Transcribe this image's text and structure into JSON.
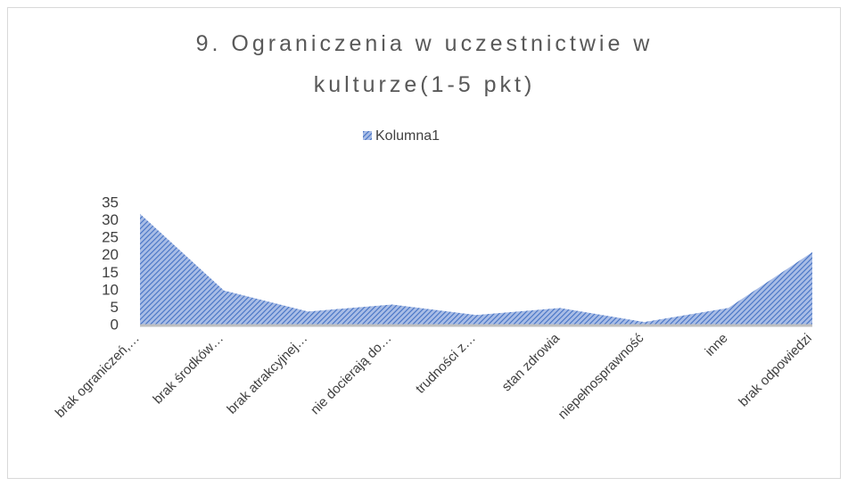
{
  "chart_data": {
    "type": "area",
    "title": [
      "9. Ograniczenia w uczestnictwie w",
      "kulturze(1-5 pkt)"
    ],
    "categories": [
      "brak ograniczeń,…",
      "brak środków…",
      "brak atrakcyjnej…",
      "nie docierają do…",
      "trudności z…",
      "stan zdrowia",
      "niepełnosprawność",
      "inne",
      "brak odpowiedzi"
    ],
    "series": [
      {
        "name": "Kolumna1",
        "color": "#4472c4",
        "values": [
          32,
          10,
          4,
          6,
          3,
          5,
          1,
          5,
          21
        ]
      }
    ],
    "ylim": [
      0,
      35
    ],
    "yticks": [
      0,
      5,
      10,
      15,
      20,
      25,
      30,
      35
    ],
    "grid": false,
    "legend": "top"
  }
}
